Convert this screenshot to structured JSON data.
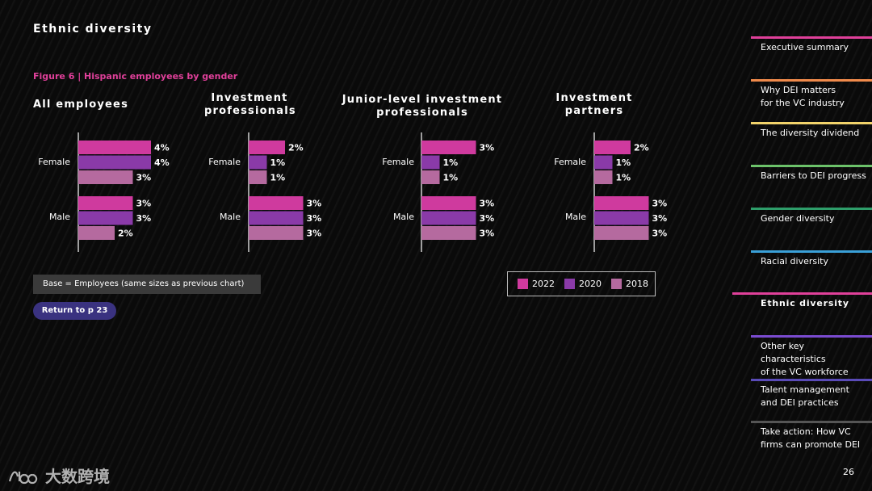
{
  "section_title": "Ethnic diversity",
  "figure_label": "Figure 6  |  Hispanic employees by gender",
  "colors": {
    "2022": "#cf3a9e",
    "2020": "#8a3aa8",
    "2018": "#b56a9f",
    "accent": "#e0409a"
  },
  "chart_data": [
    {
      "type": "bar",
      "orientation": "horizontal",
      "title": "All employees",
      "categories": [
        "Female",
        "Male"
      ],
      "xlabel": "",
      "ylabel": "",
      "series": [
        {
          "name": "2022",
          "values": [
            4,
            3
          ],
          "labels": [
            "4%",
            "3%"
          ]
        },
        {
          "name": "2020",
          "values": [
            4,
            3
          ],
          "labels": [
            "4%",
            "3%"
          ]
        },
        {
          "name": "2018",
          "values": [
            3,
            2
          ],
          "labels": [
            "3%",
            "2%"
          ]
        }
      ]
    },
    {
      "type": "bar",
      "orientation": "horizontal",
      "title": "Investment professionals",
      "categories": [
        "Female",
        "Male"
      ],
      "xlabel": "",
      "ylabel": "",
      "series": [
        {
          "name": "2022",
          "values": [
            2,
            3
          ],
          "labels": [
            "2%",
            "3%"
          ]
        },
        {
          "name": "2020",
          "values": [
            1,
            3
          ],
          "labels": [
            "1%",
            "3%"
          ]
        },
        {
          "name": "2018",
          "values": [
            1,
            3
          ],
          "labels": [
            "1%",
            "3%"
          ]
        }
      ]
    },
    {
      "type": "bar",
      "orientation": "horizontal",
      "title": "Junior-level investment professionals",
      "categories": [
        "Female",
        "Male"
      ],
      "xlabel": "",
      "ylabel": "",
      "series": [
        {
          "name": "2022",
          "values": [
            3,
            3
          ],
          "labels": [
            "3%",
            "3%"
          ]
        },
        {
          "name": "2020",
          "values": [
            1,
            3
          ],
          "labels": [
            "1%",
            "3%"
          ]
        },
        {
          "name": "2018",
          "values": [
            1,
            3
          ],
          "labels": [
            "1%",
            "3%"
          ]
        }
      ]
    },
    {
      "type": "bar",
      "orientation": "horizontal",
      "title": "Investment partners",
      "categories": [
        "Female",
        "Male"
      ],
      "xlabel": "",
      "ylabel": "",
      "series": [
        {
          "name": "2022",
          "values": [
            2,
            3
          ],
          "labels": [
            "2%",
            "3%"
          ]
        },
        {
          "name": "2020",
          "values": [
            1,
            3
          ],
          "labels": [
            "1%",
            "3%"
          ]
        },
        {
          "name": "2018",
          "values": [
            1,
            3
          ],
          "labels": [
            "1%",
            "3%"
          ]
        }
      ]
    }
  ],
  "legend": [
    "2022",
    "2020",
    "2018"
  ],
  "base_note": "Base = Employees (same sizes as previous chart)",
  "return_button": "Return to p 23",
  "sidebar": [
    {
      "label": "Executive summary",
      "color": "#e0409a"
    },
    {
      "label": "Why DEI matters\nfor the VC industry",
      "color": "#f08a4b"
    },
    {
      "label": "The diversity dividend",
      "color": "#f2d36b"
    },
    {
      "label": "Barriers to DEI progress",
      "color": "#6cc26a"
    },
    {
      "label": "Gender diversity",
      "color": "#2e9e6a"
    },
    {
      "label": "Racial diversity",
      "color": "#3aa0d8"
    },
    {
      "label": "Ethnic diversity",
      "color": "#e0409a",
      "active": true
    },
    {
      "label": "Other key characteristics\nof the VC workforce",
      "color": "#7a4bd0"
    },
    {
      "label": "Talent management\nand DEI practices",
      "color": "#5a4bb8"
    },
    {
      "label": "Take action: How VC\nfirms can promote DEI",
      "color": "#555555"
    }
  ],
  "page_number": "26",
  "watermark": "大数跨境"
}
